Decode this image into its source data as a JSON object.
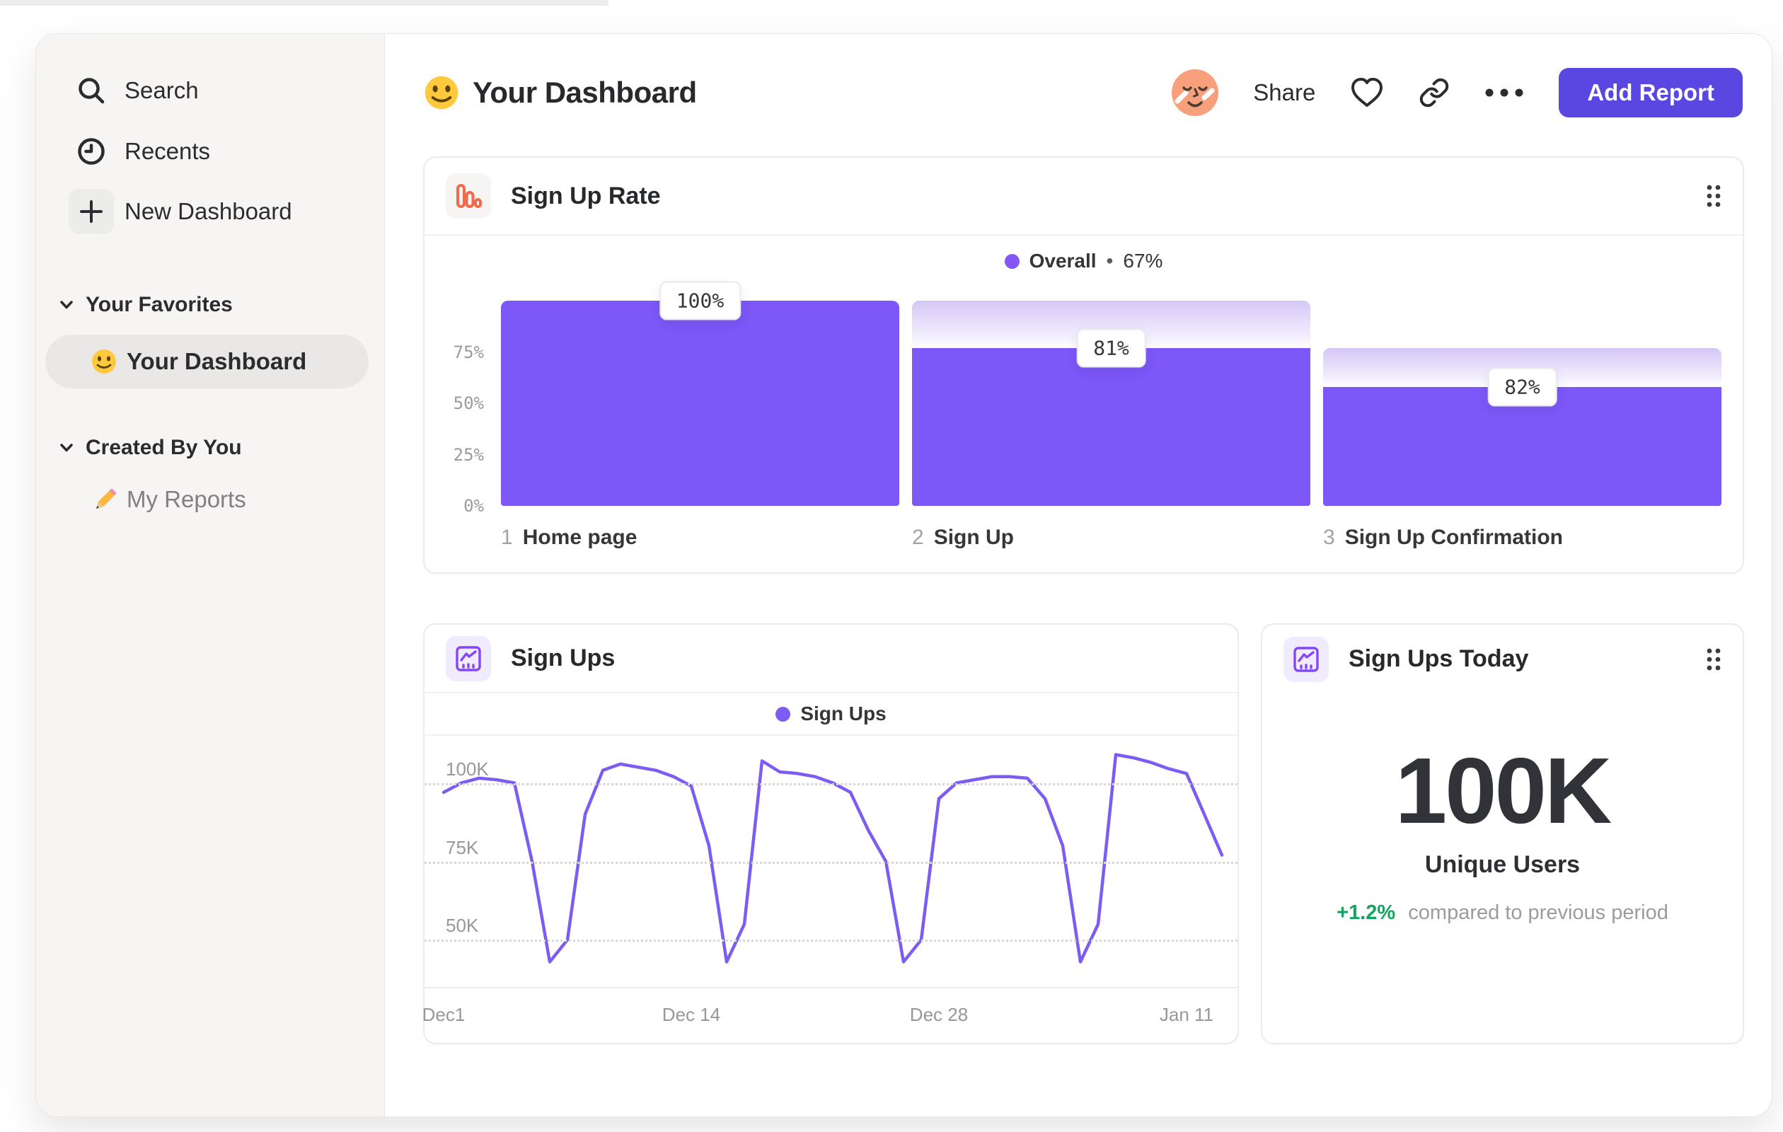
{
  "colors": {
    "accent_purple": "#7d57f7",
    "line_purple": "#7d5cf3",
    "button_purple": "#5a46e0",
    "funnel_icon_orange": "#f2694c",
    "chart_icon_purple": "#8447f6",
    "delta_green": "#15a35f",
    "sidebar_bg": "#f6f5f4"
  },
  "sidebar": {
    "nav": [
      {
        "label": "Search",
        "icon": "search-icon"
      },
      {
        "label": "Recents",
        "icon": "clock-icon"
      },
      {
        "label": "New Dashboard",
        "icon": "plus-icon"
      }
    ],
    "sections": [
      {
        "title": "Your Favorites",
        "items": [
          {
            "label": "Your Dashboard",
            "icon": "smiley-emoji",
            "selected": true
          }
        ]
      },
      {
        "title": "Created By You",
        "items": [
          {
            "label": "My Reports",
            "icon": "pencil-emoji",
            "selected": false
          }
        ]
      }
    ]
  },
  "header": {
    "title": "Your Dashboard",
    "title_icon": "smiley-emoji",
    "share_label": "Share",
    "add_report_label": "Add Report"
  },
  "chart_data": [
    {
      "id": "signup-rate-funnel",
      "type": "bar",
      "title": "Sign Up Rate",
      "legend": {
        "label": "Overall",
        "separator": "•",
        "value": "67%"
      },
      "categories": [
        "Home page",
        "Sign Up",
        "Sign Up Confirmation"
      ],
      "step_numbers": [
        "1",
        "2",
        "3"
      ],
      "conversion_pct": [
        100,
        81,
        82
      ],
      "value_labels": [
        "100%",
        "81%",
        "82%"
      ],
      "bar_height_pct": [
        100,
        77,
        58
      ],
      "dropzone_top_pct": [
        100,
        100,
        77
      ],
      "y_ticks": [
        "75%",
        "50%",
        "25%",
        "0%"
      ],
      "y_tick_pos_pct": [
        25,
        50,
        75,
        100
      ],
      "ylim": [
        0,
        100
      ],
      "grid": false,
      "legend_position": "top-center"
    },
    {
      "id": "sign-ups-line",
      "type": "line",
      "title": "Sign Ups",
      "series": [
        {
          "name": "Sign Ups",
          "color": "#7d5cf3",
          "values": [
            97,
            100,
            101.5,
            101,
            100,
            75,
            43,
            50,
            90,
            104,
            106,
            105,
            104,
            102,
            99,
            80,
            43,
            55,
            107,
            103.5,
            103,
            102,
            100,
            97,
            85,
            75,
            43,
            50,
            95,
            100,
            101,
            102,
            102,
            101.5,
            95,
            80,
            43,
            55,
            109,
            108,
            106.5,
            104.5,
            103,
            90,
            77
          ]
        }
      ],
      "values_unit": "K",
      "x_tick_labels": [
        "Dec1",
        "Dec 14",
        "Dec 28",
        "Jan 11"
      ],
      "x_tick_indices": [
        0,
        14,
        28,
        42
      ],
      "y_ticks": [
        {
          "label": "100K",
          "value": 100
        },
        {
          "label": "75K",
          "value": 75
        },
        {
          "label": "50K",
          "value": 50
        }
      ],
      "ylim": [
        35,
        115
      ],
      "grid": "dotted-horizontal",
      "legend_position": "top-center"
    },
    {
      "id": "sign-ups-today",
      "type": "big-number",
      "title": "Sign Ups Today",
      "value": "100K",
      "metric": "Unique Users",
      "delta": "+1.2%",
      "delta_note": "compared to previous period"
    }
  ]
}
